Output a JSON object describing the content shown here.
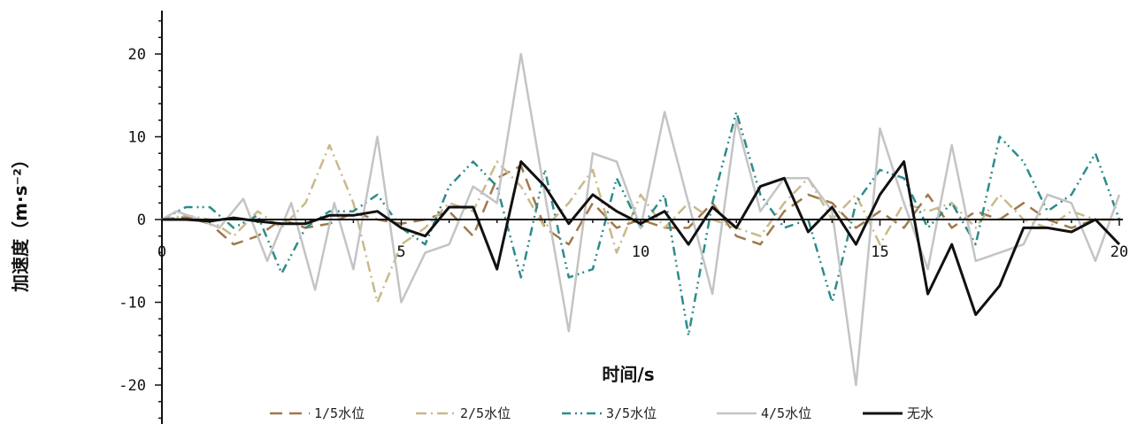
{
  "chart_data": {
    "type": "line",
    "xlabel": "时间/s",
    "ylabel": "加速度（m·s⁻²）",
    "xlim": [
      0,
      20
    ],
    "ylim": [
      -25,
      25
    ],
    "x_ticks": [
      "0",
      "5",
      "10",
      "15",
      "20"
    ],
    "y_ticks": [
      "20",
      "10",
      "0",
      "-10",
      "-20"
    ],
    "grid": false,
    "legend_position": "bottom",
    "series": [
      {
        "name": "1/5水位",
        "color": "#a0784a",
        "dash": "dash",
        "points": [
          [
            0,
            0
          ],
          [
            0.5,
            0.3
          ],
          [
            1,
            -0.5
          ],
          [
            1.5,
            -3
          ],
          [
            2,
            -2
          ],
          [
            2.5,
            0
          ],
          [
            3,
            -1
          ],
          [
            3.5,
            -0.5
          ],
          [
            4,
            0.8
          ],
          [
            4.5,
            0
          ],
          [
            5,
            -0.5
          ],
          [
            5.5,
            0
          ],
          [
            6,
            1
          ],
          [
            6.5,
            -2
          ],
          [
            7,
            5
          ],
          [
            7.5,
            6.5
          ],
          [
            8,
            -1
          ],
          [
            8.5,
            -3
          ],
          [
            9,
            2
          ],
          [
            9.5,
            -1
          ],
          [
            10,
            0
          ],
          [
            10.5,
            -1
          ],
          [
            11,
            -1
          ],
          [
            11.5,
            2
          ],
          [
            12,
            -2
          ],
          [
            12.5,
            -3
          ],
          [
            13,
            1
          ],
          [
            13.5,
            3
          ],
          [
            14,
            2
          ],
          [
            14.5,
            -1
          ],
          [
            15,
            1
          ],
          [
            15.5,
            -1
          ],
          [
            16,
            3
          ],
          [
            16.5,
            -1
          ],
          [
            17,
            1
          ],
          [
            17.5,
            0
          ],
          [
            18,
            2
          ],
          [
            18.5,
            0
          ],
          [
            19,
            -1
          ],
          [
            19.5,
            0
          ],
          [
            20,
            0
          ]
        ]
      },
      {
        "name": "2/5水位",
        "color": "#c9b98a",
        "dash": "dashdot",
        "points": [
          [
            0,
            0
          ],
          [
            0.5,
            0.5
          ],
          [
            1,
            0
          ],
          [
            1.5,
            -2
          ],
          [
            2,
            1
          ],
          [
            2.5,
            -1
          ],
          [
            3,
            2
          ],
          [
            3.5,
            9
          ],
          [
            4,
            2
          ],
          [
            4.5,
            -10
          ],
          [
            5,
            -3
          ],
          [
            5.5,
            -1
          ],
          [
            6,
            2
          ],
          [
            6.5,
            1
          ],
          [
            7,
            7
          ],
          [
            7.5,
            4
          ],
          [
            8,
            -1
          ],
          [
            8.5,
            2
          ],
          [
            9,
            6
          ],
          [
            9.5,
            -4
          ],
          [
            10,
            3
          ],
          [
            10.5,
            -1
          ],
          [
            11,
            2
          ],
          [
            11.5,
            0
          ],
          [
            12,
            -1
          ],
          [
            12.5,
            -2
          ],
          [
            13,
            2
          ],
          [
            13.5,
            5
          ],
          [
            14,
            0
          ],
          [
            14.5,
            3
          ],
          [
            15,
            -3
          ],
          [
            15.5,
            2
          ],
          [
            16,
            1
          ],
          [
            16.5,
            2
          ],
          [
            17,
            -1
          ],
          [
            17.5,
            3
          ],
          [
            18,
            0
          ],
          [
            18.5,
            -1
          ],
          [
            19,
            1
          ],
          [
            19.5,
            0
          ],
          [
            20,
            0
          ]
        ]
      },
      {
        "name": "3/5水位",
        "color": "#2e8b8b",
        "dash": "dashdotdot",
        "points": [
          [
            0,
            0
          ],
          [
            0.5,
            1.5
          ],
          [
            1,
            1.5
          ],
          [
            1.5,
            -1
          ],
          [
            2,
            0.5
          ],
          [
            2.5,
            -6.5
          ],
          [
            3,
            -1
          ],
          [
            3.5,
            1
          ],
          [
            4,
            1
          ],
          [
            4.5,
            3
          ],
          [
            5,
            -1
          ],
          [
            5.5,
            -3
          ],
          [
            6,
            4
          ],
          [
            6.5,
            7
          ],
          [
            7,
            4
          ],
          [
            7.5,
            -7
          ],
          [
            8,
            6
          ],
          [
            8.5,
            -7
          ],
          [
            9,
            -6
          ],
          [
            9.5,
            5
          ],
          [
            10,
            -1
          ],
          [
            10.5,
            3
          ],
          [
            11,
            -14
          ],
          [
            11.5,
            2
          ],
          [
            12,
            13
          ],
          [
            12.5,
            3
          ],
          [
            13,
            -1
          ],
          [
            13.5,
            0
          ],
          [
            14,
            -10
          ],
          [
            14.5,
            2
          ],
          [
            15,
            6
          ],
          [
            15.5,
            5
          ],
          [
            16,
            -1
          ],
          [
            16.5,
            2
          ],
          [
            17,
            -3
          ],
          [
            17.5,
            10
          ],
          [
            18,
            7
          ],
          [
            18.5,
            1
          ],
          [
            19,
            3
          ],
          [
            19.5,
            8
          ],
          [
            20,
            0
          ]
        ]
      },
      {
        "name": "4/5水位",
        "color": "#c4c4c4",
        "dash": "solid",
        "points": [
          [
            0,
            0
          ],
          [
            0.3,
            1
          ],
          [
            0.8,
            0
          ],
          [
            1.2,
            -1
          ],
          [
            1.7,
            2.5
          ],
          [
            2.2,
            -5
          ],
          [
            2.7,
            2
          ],
          [
            3.2,
            -8.5
          ],
          [
            3.6,
            2
          ],
          [
            4,
            -6
          ],
          [
            4.5,
            10
          ],
          [
            5,
            -10
          ],
          [
            5.5,
            -4
          ],
          [
            6,
            -3
          ],
          [
            6.5,
            4
          ],
          [
            7,
            2
          ],
          [
            7.5,
            20
          ],
          [
            8,
            3
          ],
          [
            8.5,
            -13.5
          ],
          [
            9,
            8
          ],
          [
            9.5,
            7
          ],
          [
            10,
            -1
          ],
          [
            10.5,
            13
          ],
          [
            11,
            2
          ],
          [
            11.5,
            -9
          ],
          [
            12,
            12
          ],
          [
            12.5,
            1
          ],
          [
            13,
            5
          ],
          [
            13.5,
            5
          ],
          [
            14,
            1
          ],
          [
            14.5,
            -20
          ],
          [
            15,
            11
          ],
          [
            15.5,
            2
          ],
          [
            16,
            -6
          ],
          [
            16.5,
            9
          ],
          [
            17,
            -5
          ],
          [
            17.5,
            -4
          ],
          [
            18,
            -3
          ],
          [
            18.5,
            3
          ],
          [
            19,
            2
          ],
          [
            19.5,
            -5
          ],
          [
            20,
            3
          ]
        ]
      },
      {
        "name": "无水",
        "color": "#111111",
        "dash": "solid",
        "points": [
          [
            0,
            0
          ],
          [
            0.5,
            0
          ],
          [
            1,
            -0.2
          ],
          [
            1.5,
            0.2
          ],
          [
            2,
            -0.2
          ],
          [
            2.5,
            -0.5
          ],
          [
            3,
            -0.5
          ],
          [
            3.5,
            0.5
          ],
          [
            4,
            0.5
          ],
          [
            4.5,
            1
          ],
          [
            5,
            -1
          ],
          [
            5.5,
            -2
          ],
          [
            6,
            1.5
          ],
          [
            6.5,
            1.5
          ],
          [
            7,
            -6
          ],
          [
            7.5,
            7
          ],
          [
            8,
            4
          ],
          [
            8.5,
            -0.5
          ],
          [
            9,
            3
          ],
          [
            9.5,
            1
          ],
          [
            10,
            -0.5
          ],
          [
            10.5,
            1
          ],
          [
            11,
            -3
          ],
          [
            11.5,
            1.5
          ],
          [
            12,
            -1
          ],
          [
            12.5,
            4
          ],
          [
            13,
            5
          ],
          [
            13.5,
            -1.5
          ],
          [
            14,
            1.5
          ],
          [
            14.5,
            -3
          ],
          [
            15,
            3
          ],
          [
            15.5,
            7
          ],
          [
            16,
            -9
          ],
          [
            16.5,
            -3
          ],
          [
            17,
            -11.5
          ],
          [
            17.5,
            -8
          ],
          [
            18,
            -1
          ],
          [
            18.5,
            -1
          ],
          [
            19,
            -1.5
          ],
          [
            19.5,
            0
          ],
          [
            20,
            -3
          ]
        ]
      }
    ]
  }
}
